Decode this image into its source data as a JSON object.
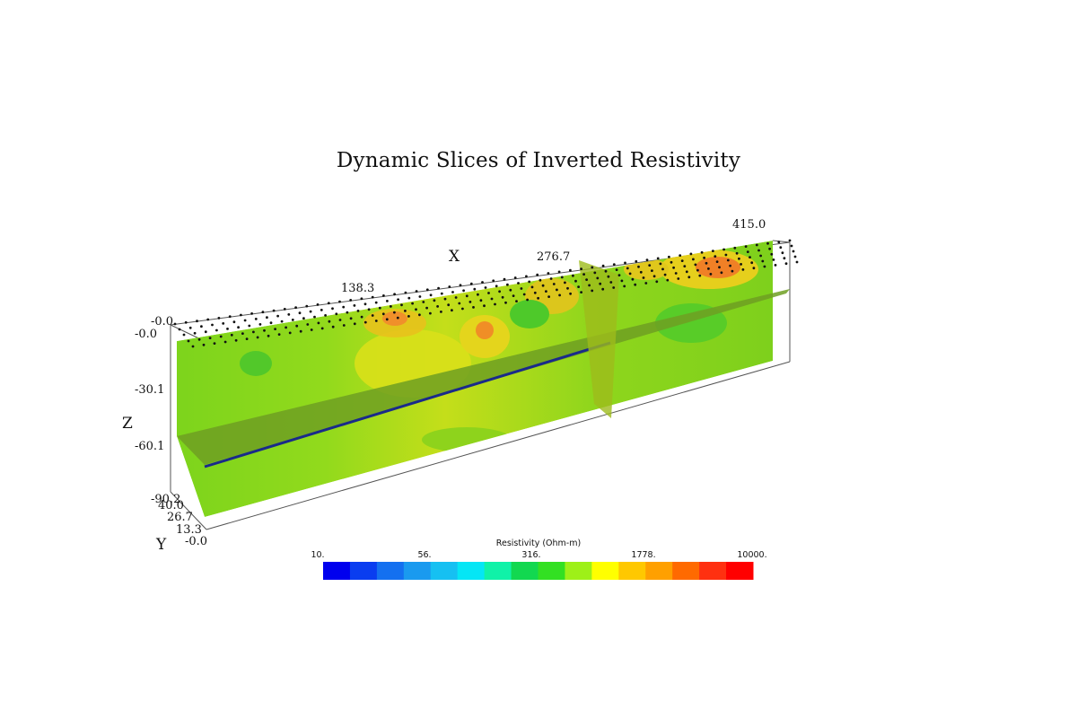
{
  "chart_data": {
    "type": "heatmap",
    "title": "Dynamic Slices of Inverted Resistivity",
    "axes": {
      "x": {
        "label": "X",
        "ticks": [
          "138.3",
          "276.7",
          "415.0"
        ]
      },
      "y": {
        "label": "Y",
        "ticks": [
          "40.0",
          "26.7",
          "13.3",
          "-0.0"
        ]
      },
      "z": {
        "label": "Z",
        "ticks": [
          "-0.0",
          "-0.0",
          "-30.1",
          "-60.1",
          "-90.2"
        ]
      }
    },
    "colorbar": {
      "label": "Resistivity (Ohm-m)",
      "scale": "log",
      "range": [
        10,
        10000
      ],
      "tick_labels": [
        "10.",
        "56.",
        "316.",
        "1778.",
        "10000."
      ],
      "colors": [
        "#0000ee",
        "#0a3df0",
        "#1470f0",
        "#1a9aef",
        "#16c0f2",
        "#05e6f5",
        "#10f2a8",
        "#12d850",
        "#33e022",
        "#9ef018",
        "#ffff00",
        "#ffc800",
        "#ffa000",
        "#ff6a00",
        "#ff3010",
        "#ff0000"
      ]
    },
    "slices": [
      {
        "orientation": "vertical-xz",
        "position": "y = 40.0",
        "dominant_colors": [
          "#7fd81c",
          "#e3df1a",
          "#f28a22"
        ]
      },
      {
        "orientation": "vertical-yz",
        "position": "x ≈ 276.7",
        "dominant_colors": [
          "#a6c51c"
        ]
      },
      {
        "orientation": "horizontal-xy",
        "position": "z ≈ -60.1",
        "dominant_colors": [
          "#6f9a1e",
          "#1a2a8a"
        ]
      }
    ],
    "electrodes": "dotted lines along the top surface"
  }
}
